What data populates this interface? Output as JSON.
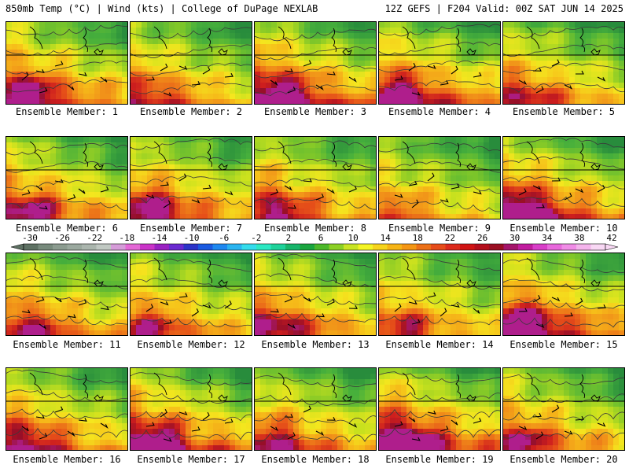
{
  "header": {
    "left": "850mb Temp (°C) | Wind (kts) | College of DuPage NEXLAB",
    "right": "12Z GEFS | F204 Valid: 00Z SAT JUN 14 2025"
  },
  "panel_label_prefix": "Ensemble Member:",
  "members": [
    {
      "number": "1",
      "label": "Ensemble Member: 1",
      "warmth": 0.75
    },
    {
      "number": "2",
      "label": "Ensemble Member: 2",
      "warmth": 0.55
    },
    {
      "number": "3",
      "label": "Ensemble Member: 3",
      "warmth": 0.85
    },
    {
      "number": "4",
      "label": "Ensemble Member: 4",
      "warmth": 0.75
    },
    {
      "number": "5",
      "label": "Ensemble Member: 5",
      "warmth": 0.55
    },
    {
      "number": "6",
      "label": "Ensemble Member: 6",
      "warmth": 0.65
    },
    {
      "number": "7",
      "label": "Ensemble Member: 7",
      "warmth": 0.7
    },
    {
      "number": "8",
      "label": "Ensemble Member: 8",
      "warmth": 0.65
    },
    {
      "number": "9",
      "label": "Ensemble Member: 9",
      "warmth": 0.4
    },
    {
      "number": "10",
      "label": "Ensemble Member: 10",
      "warmth": 0.8
    },
    {
      "number": "11",
      "label": "Ensemble Member: 11",
      "warmth": 0.6
    },
    {
      "number": "12",
      "label": "Ensemble Member: 12",
      "warmth": 0.55
    },
    {
      "number": "13",
      "label": "Ensemble Member: 13",
      "warmth": 0.65
    },
    {
      "number": "14",
      "label": "Ensemble Member: 14",
      "warmth": 0.55
    },
    {
      "number": "15",
      "label": "Ensemble Member: 15",
      "warmth": 0.85
    },
    {
      "number": "16",
      "label": "Ensemble Member: 16",
      "warmth": 0.65
    },
    {
      "number": "17",
      "label": "Ensemble Member: 17",
      "warmth": 0.8
    },
    {
      "number": "18",
      "label": "Ensemble Member: 18",
      "warmth": 0.6
    },
    {
      "number": "19",
      "label": "Ensemble Member: 19",
      "warmth": 0.9
    },
    {
      "number": "20",
      "label": "Ensemble Member: 20",
      "warmth": 0.6
    }
  ],
  "colorbar": {
    "ticks": [
      "-30",
      "-26",
      "-22",
      "-18",
      "-14",
      "-10",
      "-6",
      "-2",
      "2",
      "6",
      "10",
      "14",
      "18",
      "22",
      "26",
      "30",
      "34",
      "38",
      "42"
    ],
    "colors": [
      "#5e7163",
      "#778a7c",
      "#8b9b8f",
      "#9aa89e",
      "#aab5ad",
      "#c0c8c2",
      "#d59cd8",
      "#e468d6",
      "#ca34c8",
      "#9a22c2",
      "#6a2ad0",
      "#2c34c8",
      "#1a5ae0",
      "#1e88f0",
      "#2ab4f0",
      "#34dcec",
      "#2ce8c2",
      "#1ed29a",
      "#17b56a",
      "#1aa53f",
      "#4cb82a",
      "#8cd025",
      "#c8e424",
      "#f4f424",
      "#f6d41c",
      "#f6b416",
      "#f49614",
      "#ec7018",
      "#e64c1a",
      "#dc2a1c",
      "#d01414",
      "#b40e1c",
      "#9a0e22",
      "#a4146a",
      "#c01c9e",
      "#d83ec8",
      "#e868dc",
      "#f08ce6",
      "#f4b4ec",
      "#f8d8f4"
    ]
  }
}
